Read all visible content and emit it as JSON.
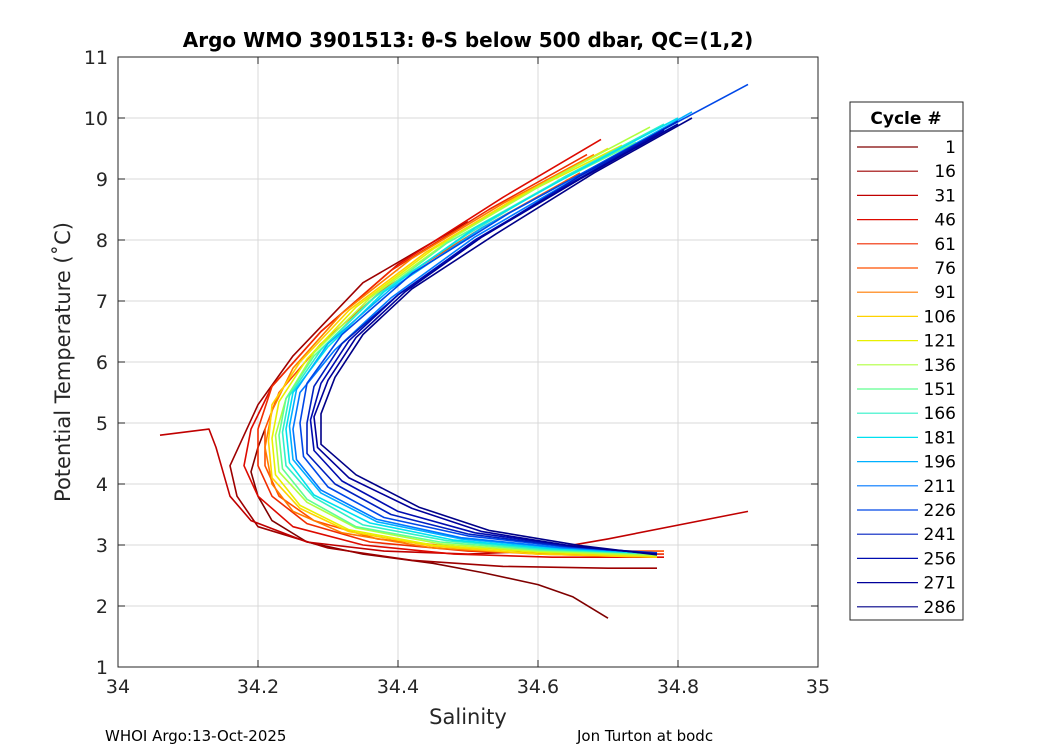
{
  "chart_data": {
    "type": "line",
    "title": "Argo WMO 3901513: θ-S below 500 dbar,  QC=(1,2)",
    "xlabel": "Salinity",
    "ylabel": "Potential Temperature (˚C)",
    "xlim": [
      34,
      35
    ],
    "ylim": [
      1,
      11
    ],
    "x_ticks": [
      "34",
      "34.2",
      "34.4",
      "34.6",
      "34.8",
      "35"
    ],
    "y_ticks": [
      "1",
      "2",
      "3",
      "4",
      "5",
      "6",
      "7",
      "8",
      "9",
      "10",
      "11"
    ],
    "grid": true,
    "legend": {
      "title": "Cycle #",
      "placement": "right",
      "entries": [
        "1",
        "16",
        "31",
        "46",
        "61",
        "76",
        "91",
        "106",
        "121",
        "136",
        "151",
        "166",
        "181",
        "196",
        "211",
        "226",
        "241",
        "256",
        "271",
        "286"
      ],
      "colors": [
        "#800000",
        "#9e0000",
        "#c00000",
        "#dd0a00",
        "#f02c00",
        "#ff5000",
        "#ff7c00",
        "#ffd200",
        "#e8f000",
        "#b0ff40",
        "#60ff90",
        "#30f0c8",
        "#00e0f0",
        "#00b0ff",
        "#0078ff",
        "#0048e8",
        "#0020c0",
        "#000cb0",
        "#00009a",
        "#000088"
      ]
    },
    "series": [
      {
        "name": "1",
        "color": "#800000",
        "points": [
          [
            34.21,
            4.9
          ],
          [
            34.2,
            4.6
          ],
          [
            34.19,
            4.2
          ],
          [
            34.2,
            3.8
          ],
          [
            34.22,
            3.4
          ],
          [
            34.27,
            3.05
          ],
          [
            34.35,
            2.85
          ],
          [
            34.45,
            2.7
          ],
          [
            34.52,
            2.55
          ],
          [
            34.6,
            2.35
          ],
          [
            34.65,
            2.15
          ],
          [
            34.7,
            1.8
          ]
        ]
      },
      {
        "name": "16",
        "color": "#9e0000",
        "points": [
          [
            34.5,
            8.3
          ],
          [
            34.35,
            7.3
          ],
          [
            34.25,
            6.1
          ],
          [
            34.2,
            5.3
          ],
          [
            34.18,
            4.8
          ],
          [
            34.16,
            4.3
          ],
          [
            34.17,
            3.8
          ],
          [
            34.2,
            3.3
          ],
          [
            34.3,
            2.95
          ],
          [
            34.42,
            2.75
          ],
          [
            34.55,
            2.65
          ],
          [
            34.7,
            2.62
          ],
          [
            34.77,
            2.62
          ]
        ]
      },
      {
        "name": "31",
        "color": "#c00000",
        "points": [
          [
            34.06,
            4.8
          ],
          [
            34.13,
            4.9
          ],
          [
            34.14,
            4.6
          ],
          [
            34.15,
            4.2
          ],
          [
            34.16,
            3.8
          ],
          [
            34.19,
            3.4
          ],
          [
            34.27,
            3.05
          ],
          [
            34.38,
            2.9
          ],
          [
            34.5,
            2.85
          ],
          [
            34.6,
            2.9
          ],
          [
            34.7,
            3.1
          ],
          [
            34.9,
            3.55
          ]
        ]
      },
      {
        "name": "46",
        "color": "#dd0a00",
        "points": [
          [
            34.69,
            9.65
          ],
          [
            34.55,
            8.7
          ],
          [
            34.4,
            7.6
          ],
          [
            34.29,
            6.5
          ],
          [
            34.22,
            5.6
          ],
          [
            34.19,
            4.9
          ],
          [
            34.18,
            4.3
          ],
          [
            34.2,
            3.8
          ],
          [
            34.25,
            3.3
          ],
          [
            34.35,
            3.0
          ],
          [
            34.48,
            2.85
          ],
          [
            34.62,
            2.8
          ],
          [
            34.78,
            2.8
          ]
        ]
      },
      {
        "name": "61",
        "color": "#f02c00",
        "points": [
          [
            34.67,
            9.4
          ],
          [
            34.53,
            8.5
          ],
          [
            34.39,
            7.5
          ],
          [
            34.29,
            6.5
          ],
          [
            34.22,
            5.6
          ],
          [
            34.2,
            4.9
          ],
          [
            34.2,
            4.3
          ],
          [
            34.22,
            3.8
          ],
          [
            34.27,
            3.35
          ],
          [
            34.36,
            3.05
          ],
          [
            34.5,
            2.9
          ],
          [
            34.65,
            2.85
          ],
          [
            34.78,
            2.85
          ]
        ]
      },
      {
        "name": "76",
        "color": "#ff5000",
        "points": [
          [
            34.66,
            9.1
          ],
          [
            34.52,
            8.2
          ],
          [
            34.38,
            7.2
          ],
          [
            34.29,
            6.3
          ],
          [
            34.23,
            5.5
          ],
          [
            34.21,
            4.9
          ],
          [
            34.21,
            4.3
          ],
          [
            34.23,
            3.8
          ],
          [
            34.28,
            3.4
          ],
          [
            34.37,
            3.1
          ],
          [
            34.5,
            2.95
          ],
          [
            34.65,
            2.9
          ],
          [
            34.78,
            2.9
          ]
        ]
      },
      {
        "name": "91",
        "color": "#ff7c00",
        "points": [
          [
            34.68,
            9.4
          ],
          [
            34.55,
            8.6
          ],
          [
            34.42,
            7.7
          ],
          [
            34.32,
            6.8
          ],
          [
            34.25,
            5.9
          ],
          [
            34.22,
            5.2
          ],
          [
            34.21,
            4.6
          ],
          [
            34.22,
            4.0
          ],
          [
            34.25,
            3.55
          ],
          [
            34.32,
            3.2
          ],
          [
            34.45,
            2.95
          ],
          [
            34.6,
            2.85
          ],
          [
            34.77,
            2.8
          ]
        ]
      },
      {
        "name": "106",
        "color": "#ffd200",
        "points": [
          [
            34.7,
            9.5
          ],
          [
            34.57,
            8.7
          ],
          [
            34.44,
            7.8
          ],
          [
            34.33,
            6.85
          ],
          [
            34.26,
            6.0
          ],
          [
            34.22,
            5.3
          ],
          [
            34.215,
            4.7
          ],
          [
            34.22,
            4.1
          ],
          [
            34.26,
            3.6
          ],
          [
            34.33,
            3.22
          ],
          [
            34.45,
            2.98
          ],
          [
            34.6,
            2.85
          ],
          [
            34.77,
            2.8
          ]
        ]
      },
      {
        "name": "121",
        "color": "#e8f000",
        "points": [
          [
            34.72,
            9.55
          ],
          [
            34.58,
            8.75
          ],
          [
            34.45,
            7.85
          ],
          [
            34.34,
            6.9
          ],
          [
            34.27,
            6.05
          ],
          [
            34.23,
            5.35
          ],
          [
            34.22,
            4.75
          ],
          [
            34.225,
            4.15
          ],
          [
            34.26,
            3.65
          ],
          [
            34.33,
            3.25
          ],
          [
            34.45,
            3.0
          ],
          [
            34.6,
            2.88
          ],
          [
            34.77,
            2.82
          ]
        ]
      },
      {
        "name": "136",
        "color": "#b0ff40",
        "points": [
          [
            34.76,
            9.85
          ],
          [
            34.62,
            9.0
          ],
          [
            34.48,
            8.05
          ],
          [
            34.36,
            7.05
          ],
          [
            34.28,
            6.15
          ],
          [
            34.24,
            5.4
          ],
          [
            34.225,
            4.8
          ],
          [
            34.23,
            4.2
          ],
          [
            34.27,
            3.7
          ],
          [
            34.34,
            3.28
          ],
          [
            34.46,
            3.02
          ],
          [
            34.6,
            2.9
          ],
          [
            34.77,
            2.83
          ]
        ]
      },
      {
        "name": "151",
        "color": "#60ff90",
        "points": [
          [
            34.74,
            9.6
          ],
          [
            34.61,
            8.85
          ],
          [
            34.47,
            7.95
          ],
          [
            34.36,
            7.0
          ],
          [
            34.28,
            6.1
          ],
          [
            34.24,
            5.4
          ],
          [
            34.23,
            4.8
          ],
          [
            34.235,
            4.25
          ],
          [
            34.27,
            3.75
          ],
          [
            34.34,
            3.3
          ],
          [
            34.46,
            3.05
          ],
          [
            34.6,
            2.92
          ],
          [
            34.77,
            2.85
          ]
        ]
      },
      {
        "name": "166",
        "color": "#30f0c8",
        "points": [
          [
            34.78,
            9.9
          ],
          [
            34.64,
            9.05
          ],
          [
            34.5,
            8.1
          ],
          [
            34.37,
            7.1
          ],
          [
            34.29,
            6.2
          ],
          [
            34.245,
            5.45
          ],
          [
            34.235,
            4.85
          ],
          [
            34.24,
            4.3
          ],
          [
            34.28,
            3.78
          ],
          [
            34.35,
            3.33
          ],
          [
            34.47,
            3.07
          ],
          [
            34.61,
            2.93
          ],
          [
            34.77,
            2.86
          ]
        ]
      },
      {
        "name": "181",
        "color": "#00e0f0",
        "points": [
          [
            34.8,
            10.0
          ],
          [
            34.66,
            9.15
          ],
          [
            34.51,
            8.2
          ],
          [
            34.38,
            7.15
          ],
          [
            34.3,
            6.25
          ],
          [
            34.25,
            5.5
          ],
          [
            34.24,
            4.9
          ],
          [
            34.245,
            4.35
          ],
          [
            34.28,
            3.82
          ],
          [
            34.36,
            3.36
          ],
          [
            34.48,
            3.08
          ],
          [
            34.62,
            2.94
          ],
          [
            34.77,
            2.86
          ]
        ]
      },
      {
        "name": "196",
        "color": "#00b0ff",
        "points": [
          [
            34.82,
            10.1
          ],
          [
            34.68,
            9.2
          ],
          [
            34.52,
            8.2
          ],
          [
            34.39,
            7.2
          ],
          [
            34.3,
            6.3
          ],
          [
            34.255,
            5.55
          ],
          [
            34.245,
            4.95
          ],
          [
            34.25,
            4.4
          ],
          [
            34.29,
            3.85
          ],
          [
            34.37,
            3.38
          ],
          [
            34.49,
            3.1
          ],
          [
            34.63,
            2.95
          ],
          [
            34.77,
            2.87
          ]
        ]
      },
      {
        "name": "211",
        "color": "#0078ff",
        "points": [
          [
            34.8,
            9.9
          ],
          [
            34.66,
            9.05
          ],
          [
            34.51,
            8.05
          ],
          [
            34.39,
            7.05
          ],
          [
            34.31,
            6.2
          ],
          [
            34.26,
            5.5
          ],
          [
            34.25,
            4.9
          ],
          [
            34.255,
            4.4
          ],
          [
            34.29,
            3.9
          ],
          [
            34.37,
            3.42
          ],
          [
            34.49,
            3.12
          ],
          [
            34.63,
            2.96
          ],
          [
            34.77,
            2.87
          ]
        ]
      },
      {
        "name": "226",
        "color": "#0048e8",
        "points": [
          [
            34.9,
            10.55
          ],
          [
            34.72,
            9.45
          ],
          [
            34.56,
            8.45
          ],
          [
            34.42,
            7.45
          ],
          [
            34.32,
            6.45
          ],
          [
            34.27,
            5.65
          ],
          [
            34.26,
            5.0
          ],
          [
            34.265,
            4.45
          ],
          [
            34.3,
            3.95
          ],
          [
            34.38,
            3.45
          ],
          [
            34.5,
            3.15
          ],
          [
            34.64,
            2.97
          ],
          [
            34.77,
            2.87
          ]
        ]
      },
      {
        "name": "241",
        "color": "#0020c0",
        "points": [
          [
            34.8,
            9.95
          ],
          [
            34.66,
            9.05
          ],
          [
            34.52,
            8.05
          ],
          [
            34.4,
            7.1
          ],
          [
            34.32,
            6.3
          ],
          [
            34.28,
            5.6
          ],
          [
            34.27,
            5.0
          ],
          [
            34.27,
            4.5
          ],
          [
            34.31,
            4.0
          ],
          [
            34.39,
            3.5
          ],
          [
            34.5,
            3.18
          ],
          [
            34.64,
            2.98
          ],
          [
            34.77,
            2.86
          ]
        ]
      },
      {
        "name": "256",
        "color": "#000cb0",
        "points": [
          [
            34.78,
            9.8
          ],
          [
            34.65,
            8.95
          ],
          [
            34.51,
            8.0
          ],
          [
            34.4,
            7.1
          ],
          [
            34.33,
            6.35
          ],
          [
            34.29,
            5.65
          ],
          [
            34.275,
            5.05
          ],
          [
            34.28,
            4.55
          ],
          [
            34.32,
            4.05
          ],
          [
            34.4,
            3.55
          ],
          [
            34.51,
            3.2
          ],
          [
            34.65,
            2.98
          ],
          [
            34.77,
            2.85
          ]
        ]
      },
      {
        "name": "271",
        "color": "#00009a",
        "points": [
          [
            34.8,
            9.9
          ],
          [
            34.66,
            9.0
          ],
          [
            34.52,
            8.05
          ],
          [
            34.41,
            7.15
          ],
          [
            34.34,
            6.4
          ],
          [
            34.3,
            5.7
          ],
          [
            34.28,
            5.1
          ],
          [
            34.285,
            4.6
          ],
          [
            34.33,
            4.1
          ],
          [
            34.42,
            3.6
          ],
          [
            34.52,
            3.22
          ],
          [
            34.65,
            2.98
          ],
          [
            34.77,
            2.85
          ]
        ]
      },
      {
        "name": "286",
        "color": "#000088",
        "points": [
          [
            34.82,
            10.0
          ],
          [
            34.68,
            9.1
          ],
          [
            34.54,
            8.1
          ],
          [
            34.42,
            7.2
          ],
          [
            34.35,
            6.45
          ],
          [
            34.31,
            5.75
          ],
          [
            34.29,
            5.15
          ],
          [
            34.29,
            4.65
          ],
          [
            34.34,
            4.15
          ],
          [
            34.43,
            3.62
          ],
          [
            34.53,
            3.24
          ],
          [
            34.66,
            2.99
          ],
          [
            34.77,
            2.84
          ]
        ]
      }
    ]
  },
  "footer": {
    "left": "WHOI Argo:13-Oct-2025",
    "right": "Jon Turton at bodc"
  }
}
